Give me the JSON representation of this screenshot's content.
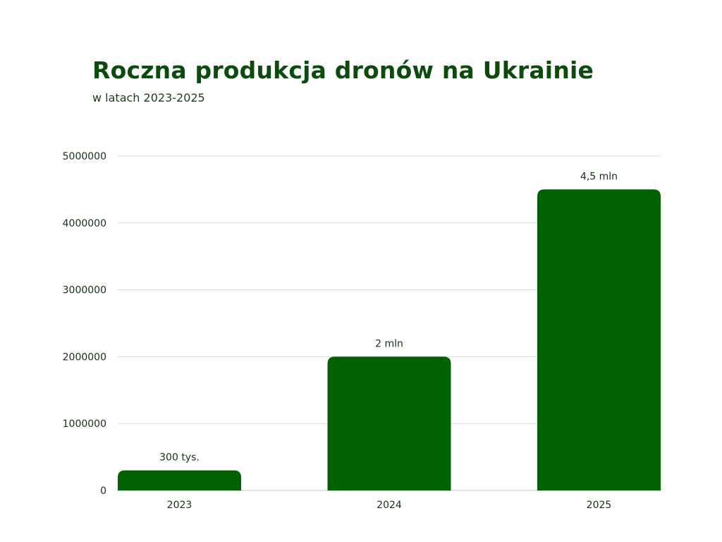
{
  "chart_data": {
    "type": "bar",
    "title": "Roczna produkcja dronów na Ukrainie",
    "subtitle": "w latach 2023-2025",
    "categories": [
      "2023",
      "2024",
      "2025"
    ],
    "values": [
      300000,
      2000000,
      4500000
    ],
    "data_labels": [
      "300 tys.",
      "2 mln",
      "4,5 mln"
    ],
    "xlabel": "",
    "ylabel": "",
    "ylim": [
      0,
      5000000
    ],
    "yticks": [
      "0",
      "1000000",
      "2000000",
      "3000000",
      "4000000",
      "5000000"
    ],
    "grid": true,
    "legend": "none",
    "colors": {
      "bar": "#006100",
      "title": "#0d4a0d",
      "grid": "#d9d9d9"
    }
  }
}
